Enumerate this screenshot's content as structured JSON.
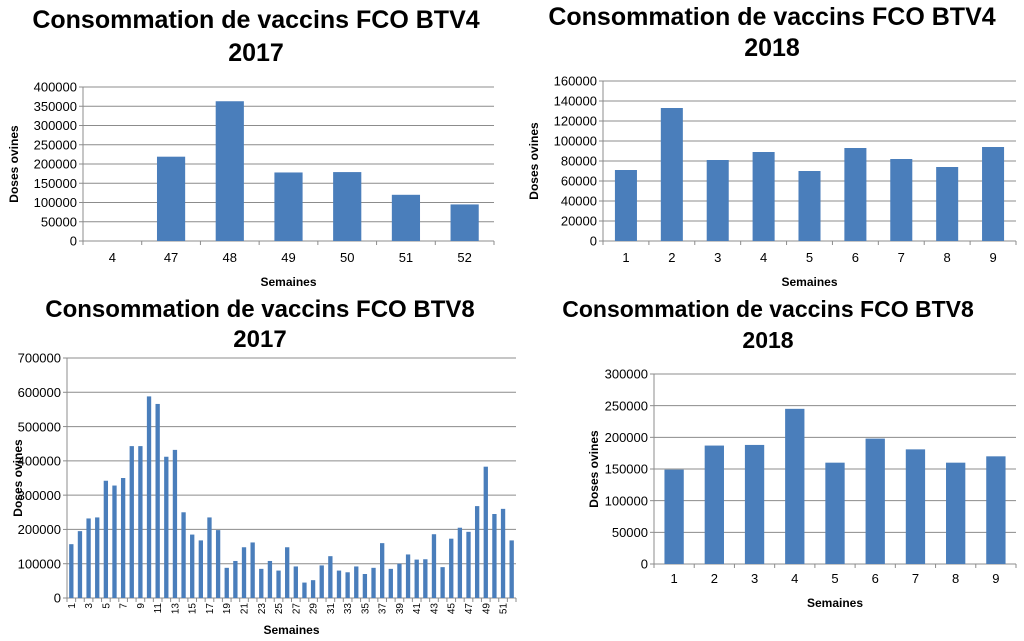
{
  "chart_data": [
    {
      "type": "bar",
      "title": [
        "Consommation de vaccins FCO BTV4",
        "2017"
      ],
      "xlabel": "Semaines",
      "ylabel": "Doses ovines",
      "ylim": [
        0,
        400000
      ],
      "ytick_step": 50000,
      "grid": true,
      "color": "#4a7ebb",
      "categories": [
        "4",
        "47",
        "48",
        "49",
        "50",
        "51",
        "52"
      ],
      "values": [
        0,
        219000,
        363000,
        178000,
        179000,
        120000,
        95000
      ]
    },
    {
      "type": "bar",
      "title": [
        "Consommation de vaccins FCO BTV4",
        "2018"
      ],
      "xlabel": "Semaines",
      "ylabel": "Doses ovines",
      "ylim": [
        0,
        160000
      ],
      "ytick_step": 20000,
      "grid": true,
      "color": "#4a7ebb",
      "categories": [
        "1",
        "2",
        "3",
        "4",
        "5",
        "6",
        "7",
        "8",
        "9"
      ],
      "values": [
        71000,
        133000,
        81000,
        89000,
        70000,
        93000,
        82000,
        74000,
        94000
      ]
    },
    {
      "type": "bar",
      "title": [
        "Consommation de vaccins FCO BTV8",
        "2017"
      ],
      "xlabel": "Semaines",
      "ylabel": "Doses ovines",
      "ylim": [
        0,
        700000
      ],
      "ytick_step": 100000,
      "grid": true,
      "color": "#4a7ebb",
      "categories": [
        "1",
        "2",
        "3",
        "4",
        "5",
        "6",
        "7",
        "8",
        "9",
        "10",
        "11",
        "12",
        "13",
        "14",
        "15",
        "16",
        "17",
        "18",
        "19",
        "20",
        "21",
        "22",
        "23",
        "24",
        "25",
        "26",
        "27",
        "28",
        "29",
        "30",
        "31",
        "32",
        "33",
        "34",
        "35",
        "36",
        "37",
        "38",
        "39",
        "40",
        "41",
        "42",
        "43",
        "44",
        "45",
        "46",
        "47",
        "48",
        "49",
        "50",
        "51",
        "52"
      ],
      "tick_labels_shown": [
        "1",
        "3",
        "5",
        "7",
        "9",
        "11",
        "13",
        "15",
        "17",
        "19",
        "21",
        "23",
        "25",
        "27",
        "29",
        "31",
        "33",
        "35",
        "37",
        "39",
        "41",
        "43",
        "45",
        "47",
        "49",
        "51"
      ],
      "values": [
        157000,
        195000,
        232000,
        235000,
        342000,
        328000,
        350000,
        443000,
        443000,
        588000,
        566000,
        412000,
        432000,
        250000,
        185000,
        168000,
        235000,
        198000,
        88000,
        108000,
        148000,
        162000,
        85000,
        108000,
        80000,
        148000,
        92000,
        45000,
        52000,
        95000,
        122000,
        80000,
        75000,
        92000,
        70000,
        88000,
        160000,
        85000,
        100000,
        127000,
        112000,
        113000,
        186000,
        90000,
        173000,
        205000,
        193000,
        268000,
        383000,
        245000,
        260000,
        168000
      ]
    },
    {
      "type": "bar",
      "title": [
        "Consommation de vaccins FCO BTV8",
        "2018"
      ],
      "xlabel": "Semaines",
      "ylabel": "Doses ovines",
      "ylim": [
        0,
        300000
      ],
      "ytick_step": 50000,
      "grid": true,
      "color": "#4a7ebb",
      "categories": [
        "1",
        "2",
        "3",
        "4",
        "5",
        "6",
        "7",
        "8",
        "9"
      ],
      "values": [
        149000,
        187000,
        188000,
        245000,
        160000,
        198000,
        181000,
        160000,
        170000
      ]
    }
  ]
}
